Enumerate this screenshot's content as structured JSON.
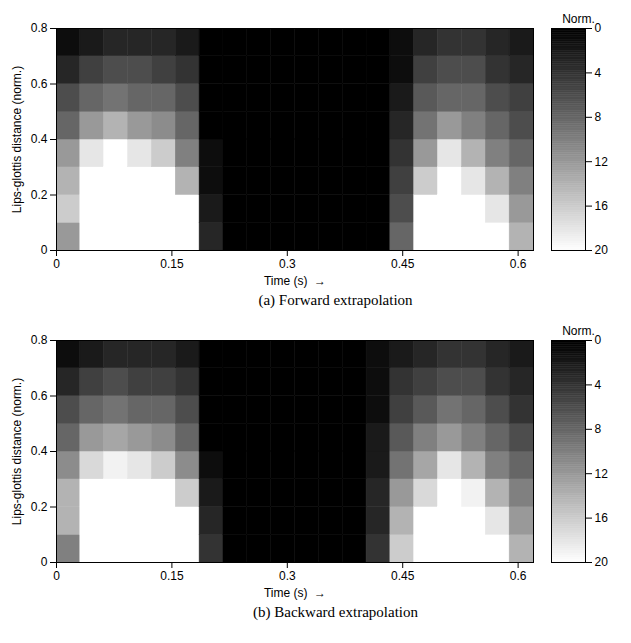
{
  "chart_data": [
    {
      "type": "heatmap",
      "caption": "(a) Forward extrapolation",
      "x_label": "Time (s)  →",
      "y_label": "Lips-glottis distance (norm.)",
      "xlim": [
        0,
        0.62
      ],
      "xticks": [
        0,
        0.15,
        0.3,
        0.45,
        0.6
      ],
      "ylim": [
        0,
        0.8
      ],
      "yticks": [
        0,
        0.2,
        0.4,
        0.6,
        0.8
      ],
      "x_bins": [
        0,
        0.031,
        0.062,
        0.093,
        0.124,
        0.155,
        0.186,
        0.217,
        0.248,
        0.279,
        0.31,
        0.341,
        0.372,
        0.403,
        0.434,
        0.465,
        0.496,
        0.527,
        0.558,
        0.589,
        0.62
      ],
      "y_bins": [
        0,
        0.1,
        0.2,
        0.3,
        0.4,
        0.5,
        0.6,
        0.7,
        0.8
      ],
      "z": [
        [
          12,
          16,
          14,
          12,
          8,
          6,
          3,
          1
        ],
        [
          20,
          20,
          20,
          18,
          12,
          8,
          5,
          2
        ],
        [
          20,
          20,
          20,
          20,
          14,
          9,
          6,
          3
        ],
        [
          20,
          20,
          20,
          18,
          12,
          8,
          6,
          3
        ],
        [
          20,
          20,
          20,
          16,
          11,
          8,
          5,
          3
        ],
        [
          20,
          20,
          14,
          10,
          8,
          6,
          4,
          2
        ],
        [
          3,
          2,
          1,
          1,
          0,
          0,
          0,
          0
        ],
        [
          0,
          0,
          0,
          0,
          0,
          0,
          0,
          0
        ],
        [
          0,
          0,
          0,
          0,
          0,
          0,
          0,
          0
        ],
        [
          0,
          0,
          0,
          0,
          0,
          0,
          0,
          0
        ],
        [
          0,
          0,
          0,
          0,
          0,
          0,
          0,
          0
        ],
        [
          0,
          0,
          0,
          0,
          0,
          0,
          0,
          0
        ],
        [
          0,
          0,
          0,
          0,
          0,
          0,
          0,
          0
        ],
        [
          0,
          0,
          0,
          0,
          0,
          0,
          0,
          0
        ],
        [
          8,
          6,
          5,
          4,
          3,
          2,
          1,
          1
        ],
        [
          20,
          20,
          16,
          12,
          9,
          7,
          5,
          3
        ],
        [
          20,
          20,
          20,
          18,
          12,
          8,
          6,
          4
        ],
        [
          20,
          20,
          18,
          14,
          10,
          8,
          6,
          4
        ],
        [
          20,
          18,
          14,
          10,
          8,
          6,
          4,
          3
        ],
        [
          14,
          12,
          10,
          8,
          6,
          5,
          3,
          2
        ]
      ],
      "colorbar": {
        "label": "Norm.",
        "range": [
          0,
          20
        ],
        "ticks": [
          0,
          4,
          8,
          12,
          16,
          20
        ]
      }
    },
    {
      "type": "heatmap",
      "caption": "(b) Backward extrapolation",
      "x_label": "Time (s)  →",
      "y_label": "Lips-glottis distance (norm.)",
      "xlim": [
        0,
        0.62
      ],
      "xticks": [
        0,
        0.15,
        0.3,
        0.45,
        0.6
      ],
      "ylim": [
        0,
        0.8
      ],
      "yticks": [
        0,
        0.2,
        0.4,
        0.6,
        0.8
      ],
      "x_bins": [
        0,
        0.031,
        0.062,
        0.093,
        0.124,
        0.155,
        0.186,
        0.217,
        0.248,
        0.279,
        0.31,
        0.341,
        0.372,
        0.403,
        0.434,
        0.465,
        0.496,
        0.527,
        0.558,
        0.589,
        0.62
      ],
      "y_bins": [
        0,
        0.1,
        0.2,
        0.3,
        0.4,
        0.5,
        0.6,
        0.7,
        0.8
      ],
      "z": [
        [
          10,
          14,
          14,
          11,
          8,
          6,
          3,
          1
        ],
        [
          20,
          20,
          20,
          17,
          12,
          8,
          5,
          2
        ],
        [
          20,
          20,
          20,
          19,
          13,
          9,
          6,
          3
        ],
        [
          20,
          20,
          20,
          18,
          12,
          8,
          5,
          3
        ],
        [
          20,
          20,
          20,
          16,
          11,
          8,
          5,
          3
        ],
        [
          20,
          20,
          16,
          11,
          8,
          6,
          4,
          2
        ],
        [
          4,
          3,
          2,
          1,
          0,
          0,
          0,
          0
        ],
        [
          0,
          0,
          0,
          0,
          0,
          0,
          0,
          0
        ],
        [
          0,
          0,
          0,
          0,
          0,
          0,
          0,
          0
        ],
        [
          0,
          0,
          0,
          0,
          0,
          0,
          0,
          0
        ],
        [
          0,
          0,
          0,
          0,
          0,
          0,
          0,
          0
        ],
        [
          0,
          0,
          0,
          0,
          0,
          0,
          0,
          0
        ],
        [
          0,
          0,
          0,
          0,
          0,
          0,
          0,
          0
        ],
        [
          4,
          3,
          3,
          2,
          2,
          1,
          1,
          1
        ],
        [
          16,
          14,
          12,
          9,
          7,
          5,
          4,
          2
        ],
        [
          20,
          20,
          17,
          13,
          10,
          7,
          5,
          3
        ],
        [
          20,
          20,
          20,
          18,
          12,
          9,
          6,
          4
        ],
        [
          20,
          20,
          19,
          14,
          10,
          8,
          6,
          4
        ],
        [
          20,
          18,
          14,
          10,
          8,
          6,
          4,
          3
        ],
        [
          14,
          12,
          10,
          8,
          6,
          4,
          3,
          2
        ]
      ],
      "colorbar": {
        "label": "Norm.",
        "range": [
          0,
          20
        ],
        "ticks": [
          0,
          4,
          8,
          12,
          16,
          20
        ]
      }
    }
  ]
}
